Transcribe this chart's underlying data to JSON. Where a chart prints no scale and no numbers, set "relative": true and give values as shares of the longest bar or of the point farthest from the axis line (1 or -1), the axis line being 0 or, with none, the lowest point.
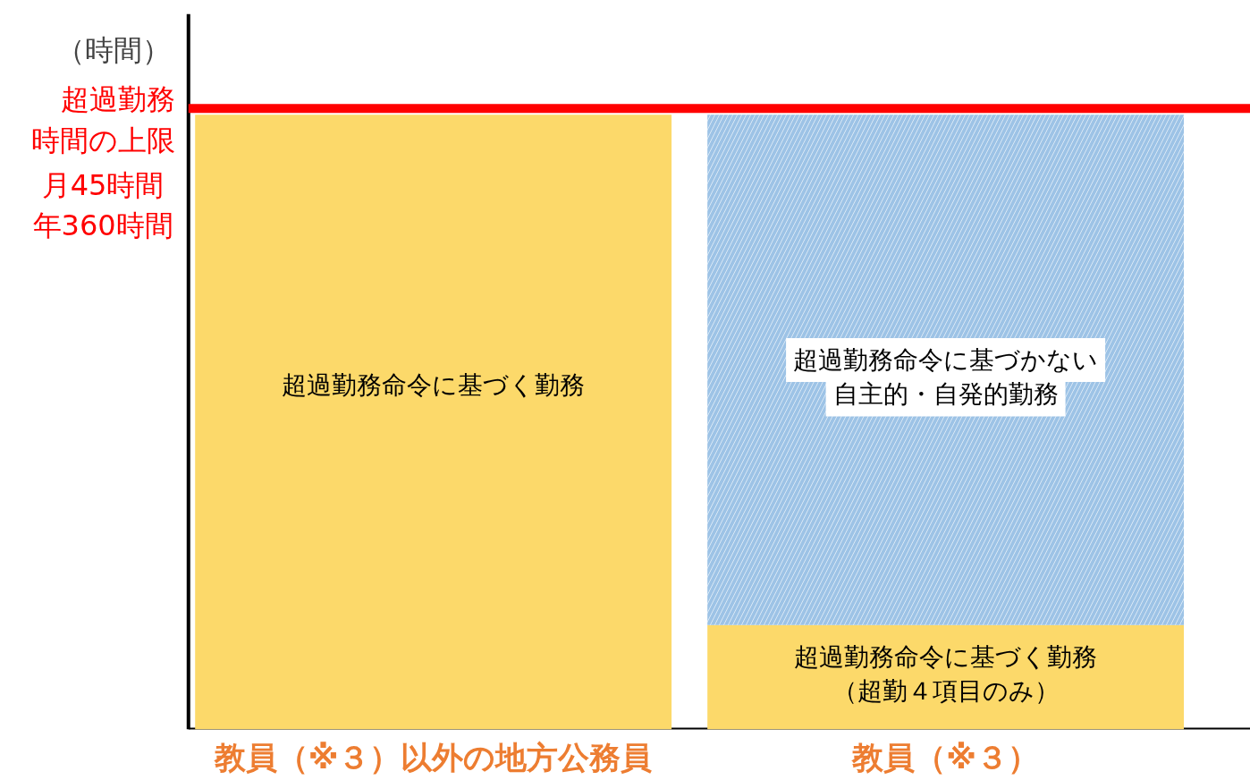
{
  "chart_data": {
    "type": "bar",
    "stacked": true,
    "relative": true,
    "ylabel": "（時間）",
    "categories": [
      "教員（※３）以外の地方公務員",
      "教員（※３）"
    ],
    "series": [
      {
        "color": "#fcd96a",
        "values": [
          1,
          0.17
        ]
      },
      {
        "color": "#9dc3e6",
        "values": [
          null,
          0.83
        ]
      }
    ],
    "ref_lines": [
      {
        "axis": "y",
        "value": 1.01,
        "label": "超過勤務時間の上限",
        "color": "#ff0000"
      }
    ],
    "annotations": [
      "超過勤務命令に基づく勤務",
      "超過勤務命令に基づかない",
      "自主的・自発的勤務",
      "超過勤務命令に基づく勤務",
      "（超勤４項目のみ）",
      "月45時間",
      "年360時間"
    ],
    "grid": false
  }
}
